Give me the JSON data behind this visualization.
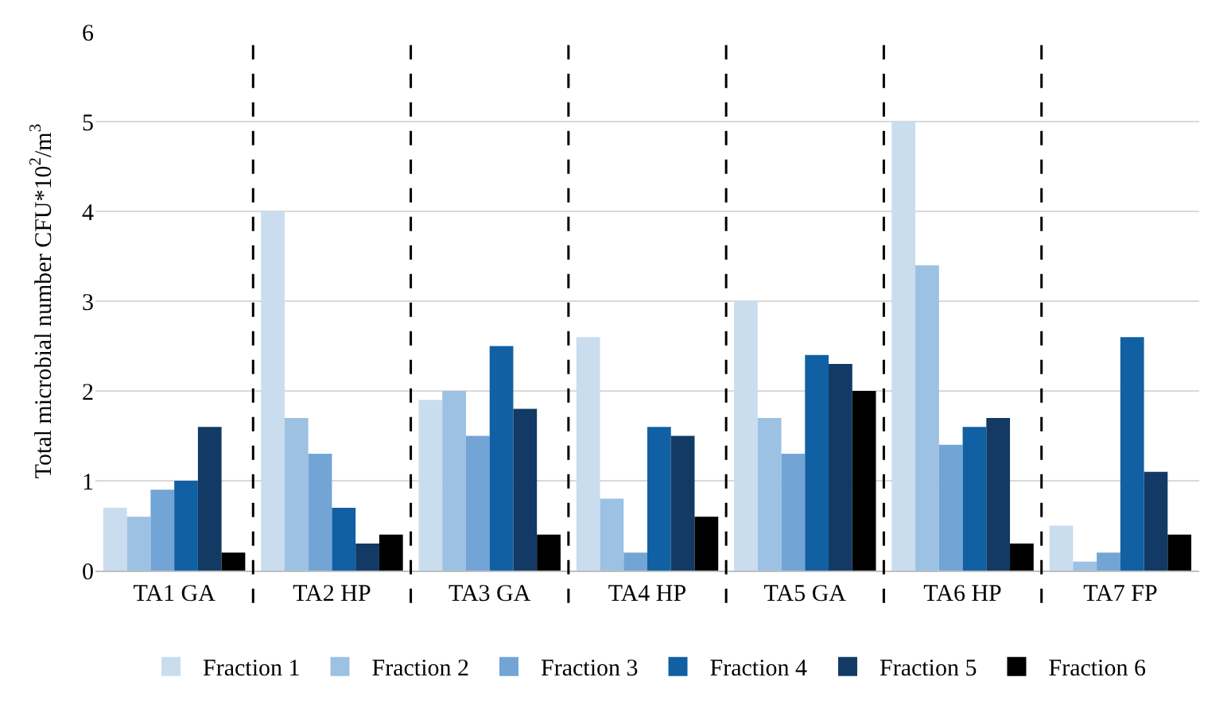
{
  "chart_data": {
    "type": "bar",
    "ylabel": "Total microbial number CFU*10$^{2}$/m$^{3}$",
    "categories": [
      "TA1 GA",
      "TA2 HP",
      "TA3 GA",
      "TA4 HP",
      "TA5 GA",
      "TA6 HP",
      "TA7 FP"
    ],
    "series": [
      {
        "name": "Fraction 1",
        "color": "#c9ddef",
        "values": [
          0.7,
          4.0,
          1.9,
          2.6,
          3.0,
          5.0,
          0.5
        ]
      },
      {
        "name": "Fraction 2",
        "color": "#9dc1e3",
        "values": [
          0.6,
          1.7,
          2.0,
          0.8,
          1.7,
          3.4,
          0.1
        ]
      },
      {
        "name": "Fraction 3",
        "color": "#72a4d6",
        "values": [
          0.9,
          1.3,
          1.5,
          0.2,
          1.3,
          1.4,
          0.2
        ]
      },
      {
        "name": "Fraction 4",
        "color": "#1060a3",
        "values": [
          1.0,
          0.7,
          2.5,
          1.6,
          2.4,
          1.6,
          2.6
        ]
      },
      {
        "name": "Fraction 5",
        "color": "#123a64",
        "values": [
          1.6,
          0.3,
          1.8,
          1.5,
          2.3,
          1.7,
          1.1
        ]
      },
      {
        "name": "Fraction 6",
        "color": "#000000",
        "values": [
          0.2,
          0.4,
          0.4,
          0.6,
          2.0,
          0.3,
          0.4
        ]
      }
    ],
    "ylim": [
      0,
      6
    ],
    "yticks": [
      0,
      1,
      2,
      3,
      4,
      5,
      6
    ],
    "grid": "y",
    "legend": "bottom"
  }
}
